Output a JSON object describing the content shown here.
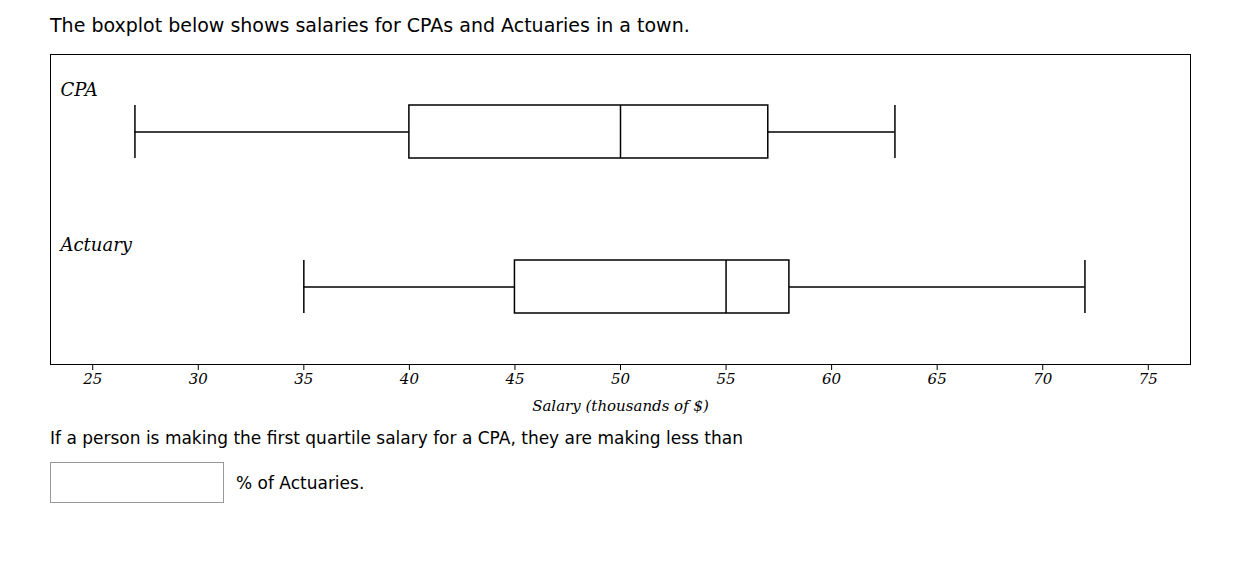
{
  "chart_data": {
    "type": "boxplot",
    "orientation": "horizontal",
    "title": "The boxplot below shows salaries for CPAs and Actuaries in a town.",
    "xlabel": "Salary (thousands of $)",
    "categories": [
      "CPA",
      "Actuary"
    ],
    "boxes": [
      {
        "min": 27,
        "q1": 40,
        "median": 50,
        "q3": 57,
        "max": 63
      },
      {
        "min": 35,
        "q1": 45,
        "median": 55,
        "q3": 58,
        "max": 72
      }
    ],
    "xlim": [
      23,
      77
    ],
    "xticks": [
      25,
      30,
      35,
      40,
      45,
      50,
      55,
      60,
      65,
      70,
      75
    ],
    "grid": false,
    "tick_labels": "x",
    "annotations": [
      "If a person is making the first quartile salary for a CPA, they are making less than",
      "% of Actuaries."
    ]
  }
}
